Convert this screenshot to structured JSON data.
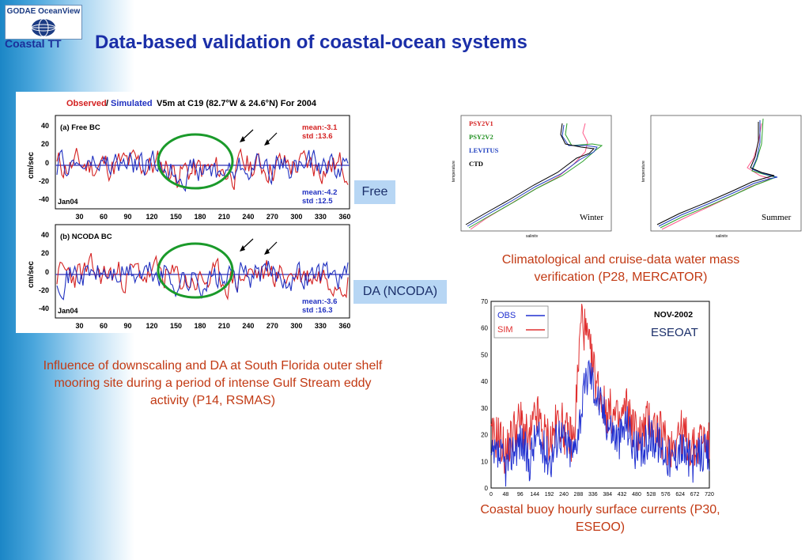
{
  "header": {
    "logo_text": "GODAE OceanView",
    "logo_sub": "Coastal TT",
    "title": "Data-based validation of coastal-ocean systems"
  },
  "left_figure": {
    "title_observed": "Observed",
    "title_slash": "/",
    "title_simulated": "Simulated",
    "title_rest": "V5m at C19 (82.7°W & 24.6°N) For 2004",
    "ylabel": "cm/sec",
    "panel_a": {
      "name": "(a) Free BC",
      "mean_obs": "mean:-3.1",
      "std_obs": "std :13.6",
      "mean_sim": "mean:-4.2",
      "std_sim": "std :12.5",
      "start": "Jan04"
    },
    "panel_b": {
      "name": "(b) NCODA BC",
      "mean_obs": "",
      "std_obs": "",
      "mean_sim": "mean:-3.6",
      "std_sim": "std :16.3",
      "start": "Jan04"
    },
    "yticks": [
      "40",
      "20",
      "0",
      "-20",
      "-40"
    ],
    "xticks": [
      "30",
      "60",
      "90",
      "120",
      "150",
      "180",
      "210",
      "240",
      "270",
      "300",
      "330",
      "360"
    ]
  },
  "labels": {
    "free": "Free",
    "da": "DA (NCODA)"
  },
  "left_caption": "Influence of downscaling and DA at South Florida outer shelf mooring site during a period of intense Gulf Stream eddy activity (P14, RSMAS)",
  "water_mass": {
    "legend": [
      "PSY2V1",
      "PSY2V2",
      "LEVITUS",
      "CTD"
    ],
    "winter_label": "Winter",
    "summer_label": "Summer",
    "xlabel": "salinity",
    "ylabel": "temperature"
  },
  "right_caption": "Climatological and cruise-data water mass verification (P28, MERCATOR)",
  "buoy_chart": {
    "legend_obs": "OBS",
    "legend_sim": "SIM",
    "date": "NOV-2002",
    "site": "ESEOAT",
    "yticks": [
      "70",
      "60",
      "50",
      "40",
      "30",
      "20",
      "10",
      "0"
    ],
    "xticks": [
      "0",
      "48",
      "96",
      "144",
      "192",
      "240",
      "288",
      "336",
      "384",
      "432",
      "480",
      "528",
      "576",
      "624",
      "672",
      "720"
    ]
  },
  "bottom_caption": "Coastal buoy hourly surface currents (P30, ESEOO)",
  "colors": {
    "title": "#1b2fa8",
    "caption": "#c23a14",
    "label_bg": "#b7d6f4",
    "obs_red": "#d42020",
    "sim_blue": "#2030c0",
    "ellipse": "#1a9a2a"
  },
  "chart_data": [
    {
      "type": "line",
      "title": "Observed/Simulated V5m at C19 (82.7°W & 24.6°N) For 2004",
      "ylabel": "cm/sec",
      "xlim": [
        1,
        366
      ],
      "ylim": [
        -50,
        50
      ],
      "panels": [
        "(a) Free BC",
        "(b) NCODA BC"
      ],
      "series": [
        {
          "name": "Observed"
        },
        {
          "name": "Simulated"
        }
      ]
    },
    {
      "type": "line",
      "xlabel": "salinity",
      "ylabel": "temperature",
      "panels": [
        "Winter",
        "Summer"
      ],
      "series": [
        {
          "name": "PSY2V1"
        },
        {
          "name": "PSY2V2"
        },
        {
          "name": "LEVITUS"
        },
        {
          "name": "CTD"
        }
      ]
    },
    {
      "type": "line",
      "title": "NOV-2002",
      "xlim": [
        0,
        720
      ],
      "ylim": [
        0,
        70
      ],
      "series": [
        {
          "name": "OBS",
          "values_sampled": [
            10,
            12,
            8,
            15,
            18,
            9,
            20,
            14,
            11,
            22,
            16,
            13,
            30,
            45,
            35,
            28,
            22,
            18,
            25,
            15,
            12,
            20,
            18,
            14,
            10,
            16,
            12,
            9,
            14,
            11
          ]
        },
        {
          "name": "SIM",
          "values_sampled": [
            18,
            20,
            12,
            22,
            25,
            16,
            28,
            20,
            18,
            26,
            20,
            18,
            65,
            52,
            40,
            30,
            28,
            24,
            30,
            22,
            20,
            26,
            22,
            18,
            16,
            22,
            18,
            14,
            20,
            16
          ]
        }
      ]
    }
  ]
}
